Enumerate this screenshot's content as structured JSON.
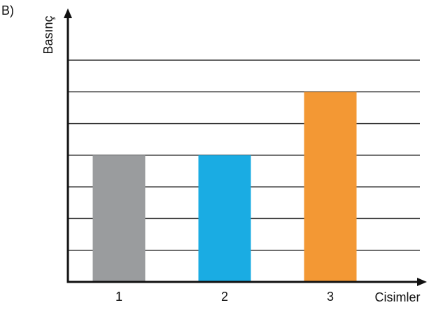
{
  "chart_data": {
    "type": "bar",
    "label": "B)",
    "y_label": "Basınç",
    "x_label": "Cisimler",
    "categories": [
      "1",
      "2",
      "3"
    ],
    "values": [
      4,
      4,
      6
    ],
    "colors": [
      "#9a9c9e",
      "#1aace3",
      "#f39834"
    ],
    "ylim": [
      0,
      7
    ],
    "yticks": [
      1,
      2,
      3,
      4,
      5,
      6,
      7
    ],
    "grid": true
  }
}
